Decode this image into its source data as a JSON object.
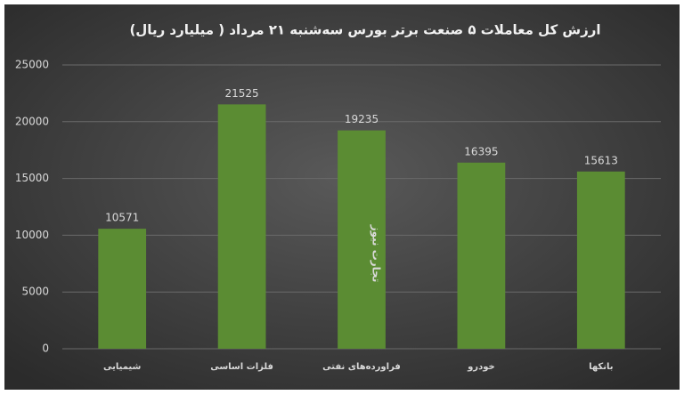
{
  "chart_data": {
    "type": "bar",
    "title": "ارزش کل معاملات ۵ صنعت برتر بورس سه‌شنبه ۲۱ مرداد ( میلیارد ریال)",
    "categories": [
      "شیمیایی",
      "فلزات اساسی",
      "فراورده‌های نفتی",
      "خودرو",
      "بانکها"
    ],
    "values": [
      10571,
      21525,
      19235,
      16395,
      15613
    ],
    "color": "#5b8c33",
    "ylim": [
      0,
      25000
    ],
    "yticks": [
      0,
      5000,
      10000,
      15000,
      20000,
      25000
    ],
    "grid": true,
    "watermark": "تجارت نیوز"
  }
}
